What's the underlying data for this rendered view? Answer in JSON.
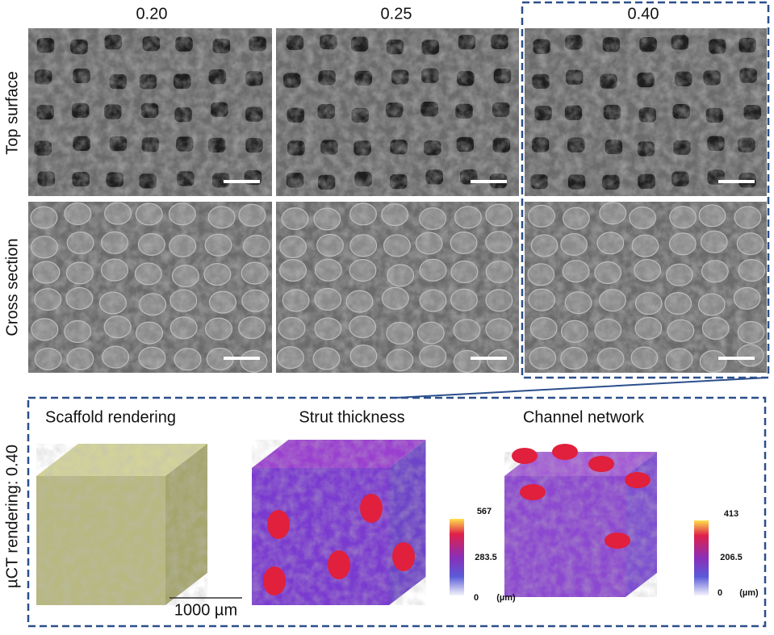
{
  "columns": [
    "0.20",
    "0.25",
    "0.40"
  ],
  "rows": [
    "Top surface",
    "Cross section"
  ],
  "lower_panel": {
    "label": "µCT rendering: 0.40",
    "titles": [
      "Scaffold rendering",
      "Strut thickness",
      "Channel network"
    ],
    "scale_bar": "1000 µm",
    "colorbars": [
      {
        "max": "567",
        "mid": "283.5",
        "min": "0",
        "unit": "(µm)"
      },
      {
        "max": "413",
        "mid": "206.5",
        "min": "0",
        "unit": "(µm)"
      }
    ]
  }
}
